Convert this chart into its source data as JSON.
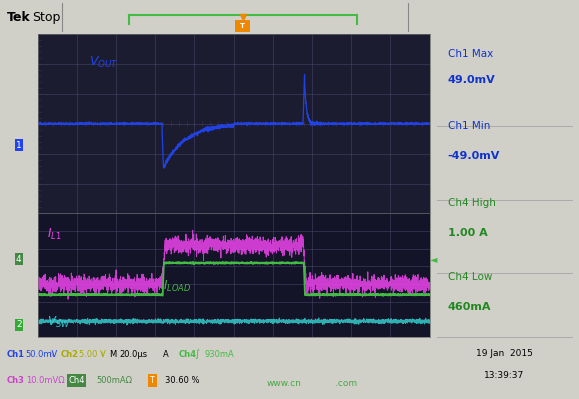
{
  "fig_bg": "#d0d0c8",
  "header_bg": "#f0f0ee",
  "screen_top_bg": "#1c1c30",
  "screen_bot_bg": "#141428",
  "right_bg": "#d8d8c8",
  "status_bg": "#d0d0c8",
  "grid_color": "#444466",
  "ch1_color": "#2244ee",
  "il1_color": "#ee44ee",
  "iload_color": "#44bb44",
  "vsw_color": "#33cccc",
  "ch1_box_color": "#2244ee",
  "ch4_box_color": "#448844",
  "ch2_box_color": "#448844",
  "trigger_color": "#ee8800",
  "cursor_color": "#44bb44",
  "ch1_max_text": "Ch1 Max",
  "ch1_max_val": "49.0mV",
  "ch1_min_text": "Ch1 Min",
  "ch1_min_val": "-49.0mV",
  "ch4_high_text": "Ch4 High",
  "ch4_high_val": "1.00 A",
  "ch4_low_text": "Ch4 Low",
  "ch4_low_val": "460mA",
  "date_text": "19 Jan  2015",
  "time_text": "13:39:37",
  "watermark": "www.cn         .com",
  "percent_text": "30.60 %",
  "t_step1": 3.2,
  "t_step2": 6.8,
  "t_total": 10.0,
  "vout_dip": -0.75,
  "vout_tau": 0.55,
  "vout_spike": 0.85,
  "vout_spike_tau": 0.05,
  "il1_low": 0.5,
  "il1_high": 1.6,
  "il1_ripple": 0.12,
  "iload_low": 0.2,
  "iload_high": 1.1,
  "vsw_level": -0.55,
  "vsw_noise": 0.03
}
